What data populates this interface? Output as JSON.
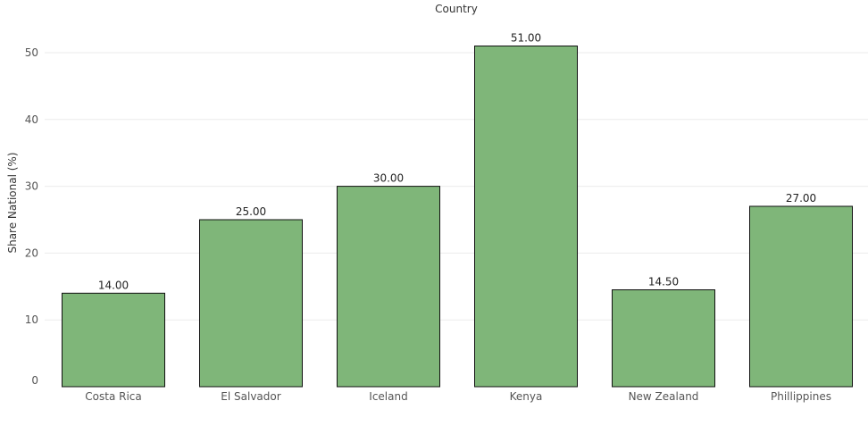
{
  "chart_data": {
    "type": "bar",
    "title": "Country",
    "xlabel": "",
    "ylabel": "Share National (%)",
    "categories": [
      "Costa Rica",
      "El Salvador",
      "Iceland",
      "Kenya",
      "New Zealand",
      "Phillippines"
    ],
    "values": [
      14.0,
      25.0,
      30.0,
      51.0,
      14.5,
      27.0
    ],
    "data_labels": [
      "14.00",
      "25.00",
      "30.00",
      "51.00",
      "14.50",
      "27.00"
    ],
    "yticks": [
      0,
      10,
      20,
      30,
      40,
      50
    ],
    "ylim": [
      0,
      55
    ],
    "grid": true,
    "legend": "none",
    "bar_color": "#7fb679",
    "bar_edge_color": "#111111"
  }
}
